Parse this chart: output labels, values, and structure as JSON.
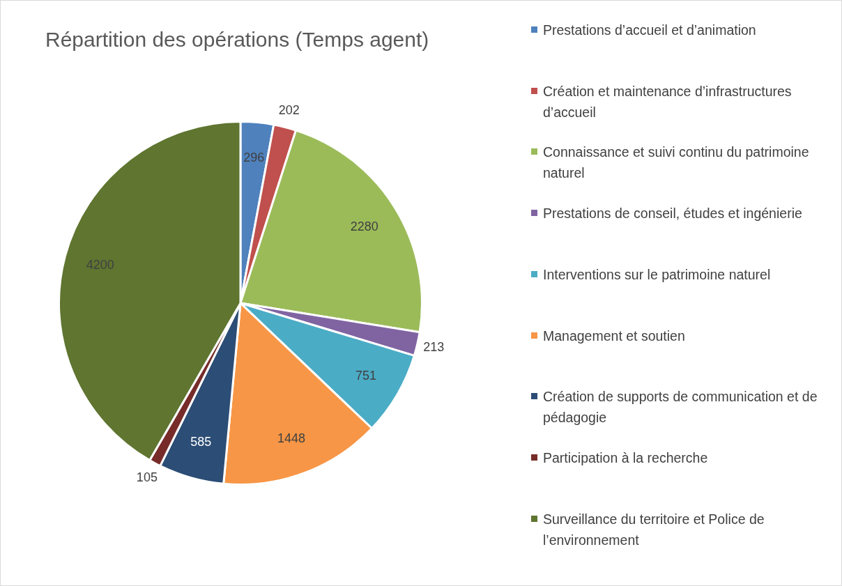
{
  "chart_data": {
    "type": "pie",
    "title": "Répartition des opérations (Temps agent)",
    "categories": [
      "Prestations d’accueil et d’animation",
      "Création et maintenance d’infrastructures d’accueil",
      "Connaissance et suivi continu du patrimoine naturel",
      "Prestations de conseil, études et ingénierie",
      "Interventions sur le patrimoine naturel",
      "Management et soutien",
      "Création de supports de communication et de pédagogie",
      "Participation à la recherche",
      "Surveillance du territoire et Police de l’environnement"
    ],
    "values": [
      296,
      202,
      2280,
      213,
      751,
      1448,
      585,
      105,
      4200
    ],
    "colors": [
      "#4f81bd",
      "#c0504d",
      "#9bbb59",
      "#8064a2",
      "#4bacc6",
      "#f79646",
      "#2c4d75",
      "#772c2a",
      "#5f7530"
    ],
    "data_labels": true,
    "legend": "right"
  }
}
